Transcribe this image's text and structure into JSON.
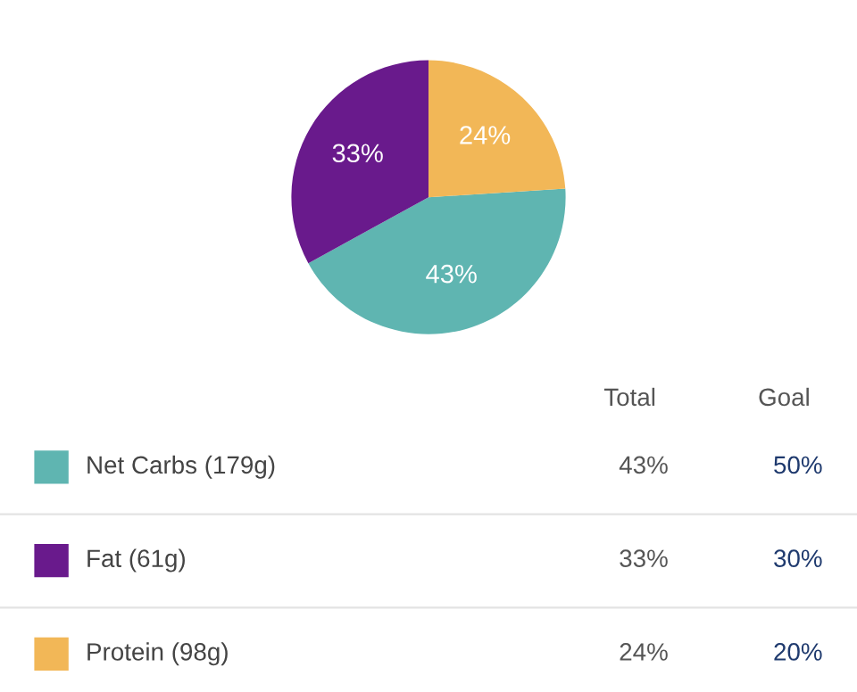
{
  "chart_data": {
    "type": "pie",
    "categories": [
      "Net Carbs (179g)",
      "Fat (61g)",
      "Protein (98g)"
    ],
    "values": [
      43,
      33,
      24
    ],
    "value_labels": [
      "43%",
      "33%",
      "24%"
    ],
    "colors": [
      "#5fb5b1",
      "#691a8c",
      "#f2b757"
    ],
    "legend": "bottom",
    "annotations": [
      "Total",
      "Goal",
      "50%",
      "30%",
      "20%"
    ]
  }
}
